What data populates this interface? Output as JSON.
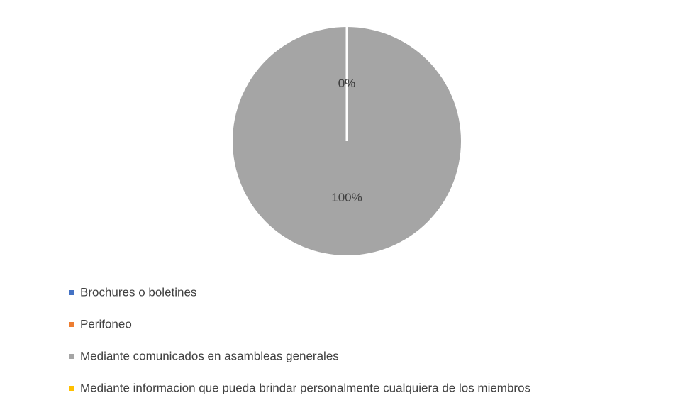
{
  "chart_data": {
    "type": "pie",
    "categories": [
      "Brochures o boletines",
      "Perifoneo",
      "Mediante comunicados en asambleas generales",
      "Mediante informacion que pueda brindar personalmente cualquiera de los miembros"
    ],
    "values": [
      0,
      0,
      100,
      0
    ],
    "value_labels": [
      "0%",
      "0%",
      "100%",
      "0%"
    ],
    "colors": [
      "#4472c4",
      "#ed7d31",
      "#a5a5a5",
      "#ffc000"
    ],
    "legend": "bottom-left"
  }
}
